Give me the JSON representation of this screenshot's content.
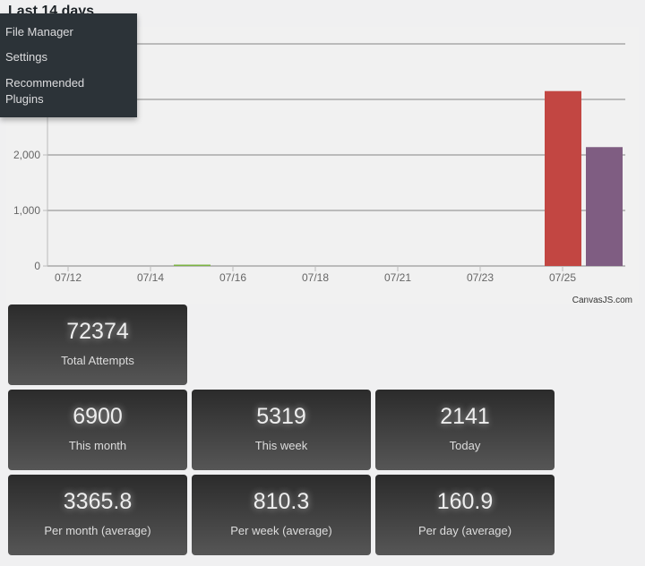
{
  "title": "Last 14 days",
  "menu": {
    "items": [
      "File Manager",
      "Settings",
      "Recommended Plugins"
    ]
  },
  "chart_data": {
    "type": "bar",
    "title": "Last 14 days",
    "yticks": [
      0,
      1000,
      2000,
      3000,
      4000
    ],
    "ytick_labels": [
      "0",
      "1,000",
      "2,000",
      "",
      ""
    ],
    "ylim": [
      0,
      4000
    ],
    "xticks": [
      {
        "day": 0,
        "label": "07/12"
      },
      {
        "day": 2,
        "label": "07/14"
      },
      {
        "day": 4,
        "label": "07/16"
      },
      {
        "day": 6,
        "label": "07/18"
      },
      {
        "day": 8,
        "label": "07/21"
      },
      {
        "day": 10,
        "label": "07/23"
      },
      {
        "day": 12,
        "label": "07/25"
      }
    ],
    "bars": [
      {
        "day": 3,
        "value": 20,
        "color": "#7cb342"
      },
      {
        "day": 12,
        "value": 3150,
        "color": "#c24642"
      },
      {
        "day": 13,
        "value": 2141,
        "color": "#7f5d82"
      }
    ],
    "credit": "CanvasJS.com"
  },
  "stats": [
    {
      "value": "72374",
      "label": "Total Attempts"
    },
    {
      "value": "6900",
      "label": "This month"
    },
    {
      "value": "5319",
      "label": "This week"
    },
    {
      "value": "2141",
      "label": "Today"
    },
    {
      "value": "3365.8",
      "label": "Per month (average)"
    },
    {
      "value": "810.3",
      "label": "Per week (average)"
    },
    {
      "value": "160.9",
      "label": "Per day (average)"
    }
  ]
}
